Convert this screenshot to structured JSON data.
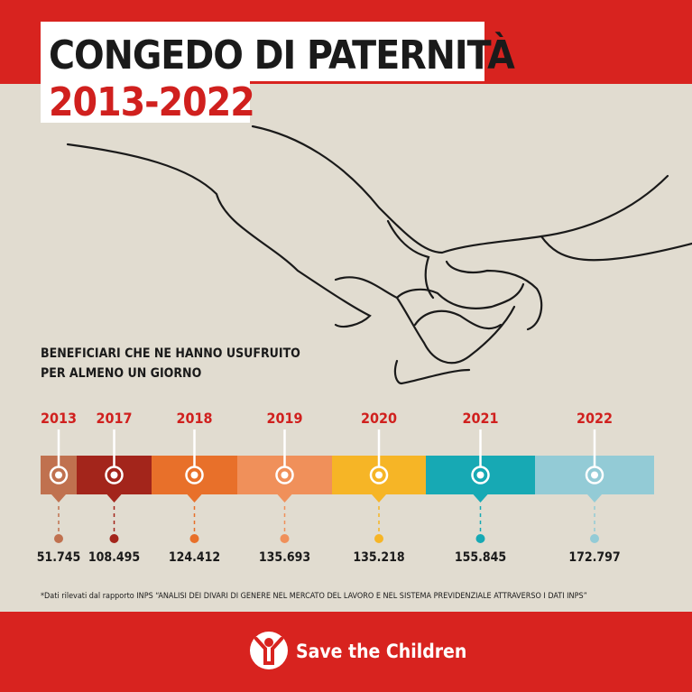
{
  "header": {
    "title": "CONGEDO DI PATERNITÀ",
    "subtitle": "2013-2022"
  },
  "caption": [
    "BENEFICIARI CHE NE HANNO USUFRUITO",
    "PER ALMENO UN GIORNO"
  ],
  "timeline": [
    {
      "year": "2013",
      "value": "51.745",
      "color": "#c0714f"
    },
    {
      "year": "2017",
      "value": "108.495",
      "color": "#a3251b"
    },
    {
      "year": "2018",
      "value": "124.412",
      "color": "#e8702a"
    },
    {
      "year": "2019",
      "value": "135.693",
      "color": "#f0905a"
    },
    {
      "year": "2020",
      "value": "135.218",
      "color": "#f6b526"
    },
    {
      "year": "2021",
      "value": "155.845",
      "color": "#17a9b4"
    },
    {
      "year": "2022",
      "value": "172.797",
      "color": "#93cbd6"
    }
  ],
  "footnote": "*Dati rilevati dal rapporto INPS “ANALISI DEI DIVARI DI GENERE NEL MERCATO DEL LAVORO E NEL SISTEMA PREVIDENZIALE ATTRAVERSO I DATI INPS”",
  "brand": "Save the Children"
}
